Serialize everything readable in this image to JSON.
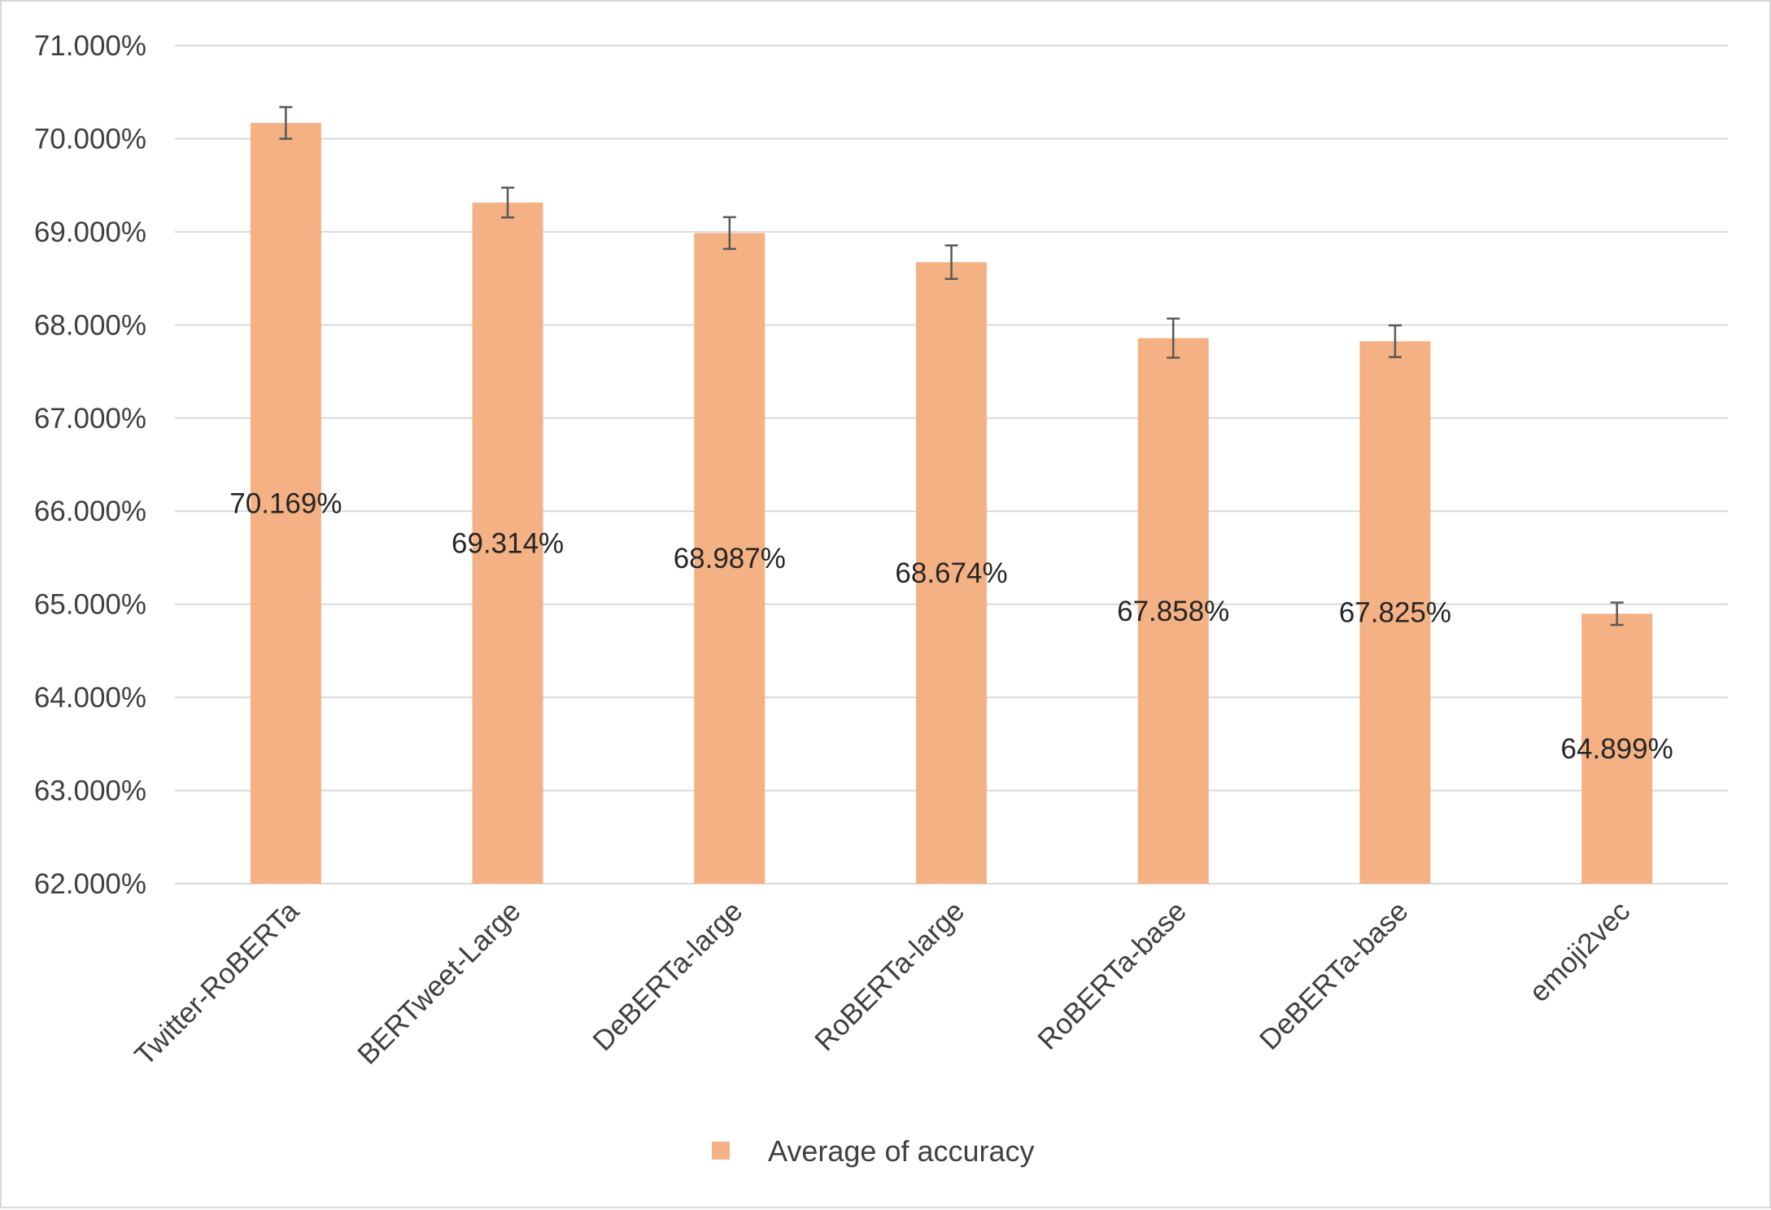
{
  "chart_data": {
    "type": "bar",
    "title": "",
    "xlabel": "",
    "ylabel": "",
    "categories": [
      "Twitter-RoBERTa",
      "BERTweet-Large",
      "DeBERTa-large",
      "RoBERTa-large",
      "RoBERTa-base",
      "DeBERTa-base",
      "emoji2vec"
    ],
    "series": [
      {
        "name": "Average of accuracy",
        "values": [
          70.169,
          69.314,
          68.987,
          68.674,
          67.858,
          67.825,
          64.899
        ],
        "data_labels": [
          "70.169%",
          "69.314%",
          "68.987%",
          "68.674%",
          "67.858%",
          "67.825%",
          "64.899%"
        ],
        "error": [
          0.17,
          0.16,
          0.17,
          0.18,
          0.21,
          0.17,
          0.12
        ],
        "color": "#f4b183"
      }
    ],
    "ylim": [
      62,
      71
    ],
    "yticks": [
      62,
      63,
      64,
      65,
      66,
      67,
      68,
      69,
      70,
      71
    ],
    "ytick_labels": [
      "62.000%",
      "63.000%",
      "64.000%",
      "65.000%",
      "66.000%",
      "67.000%",
      "68.000%",
      "69.000%",
      "70.000%",
      "71.000%"
    ],
    "grid": true,
    "gridline_color": "#d9d9d9",
    "error_bar_color": "#595959",
    "legend_position": "bottom"
  }
}
